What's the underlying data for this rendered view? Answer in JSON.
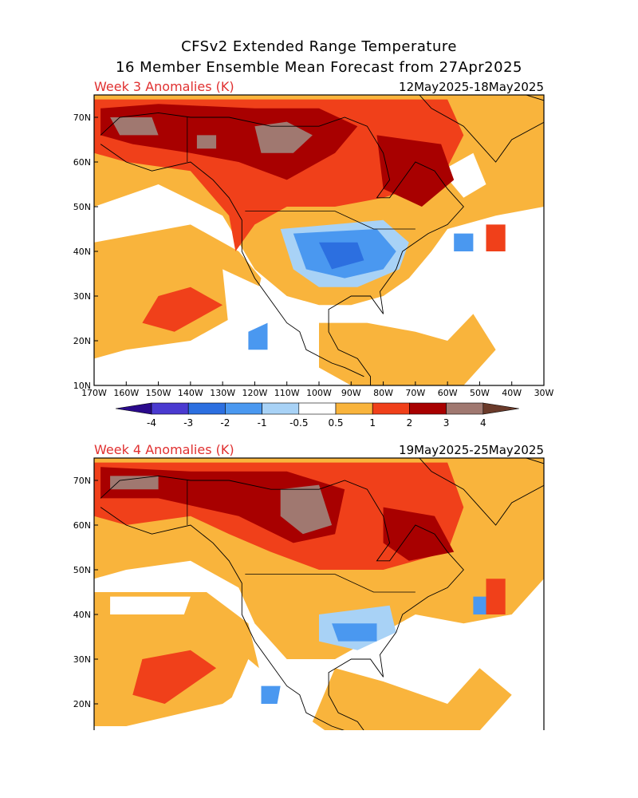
{
  "title_line1": "CFSv2 Extended Range Temperature",
  "title_line2": "16 Member Ensemble Mean Forecast from 27Apr2025",
  "panels": [
    {
      "label": "Week 3 Anomalies (K)",
      "dates": "12May2025-18May2025"
    },
    {
      "label": "Week 4 Anomalies (K)",
      "dates": "19May2025-25May2025"
    }
  ],
  "lat_labels": [
    "70N",
    "60N",
    "50N",
    "40N",
    "30N",
    "20N",
    "10N"
  ],
  "lon_labels": [
    "170W",
    "160W",
    "150W",
    "140W",
    "130W",
    "120W",
    "110W",
    "100W",
    "90W",
    "80W",
    "70W",
    "60W",
    "50W",
    "40W",
    "30W"
  ],
  "colorbar": {
    "levels": [
      "-4",
      "-3",
      "-2",
      "-1",
      "-0.5",
      "0.5",
      "1",
      "2",
      "3",
      "4"
    ],
    "colors": [
      "#2a0a8c",
      "#4a3ad0",
      "#2c6fe0",
      "#4a98f0",
      "#a8d2f6",
      "#ffffff",
      "#f9b43c",
      "#f0401a",
      "#a80000",
      "#a07870",
      "#6a3a2a"
    ]
  },
  "colors": {
    "light_warm": "#f9b43c",
    "warm": "#f0401a",
    "hot": "#a80000",
    "very_hot": "#a07870",
    "light_cool": "#a8d2f6",
    "cool": "#4a98f0",
    "cold": "#2c6fe0"
  }
}
